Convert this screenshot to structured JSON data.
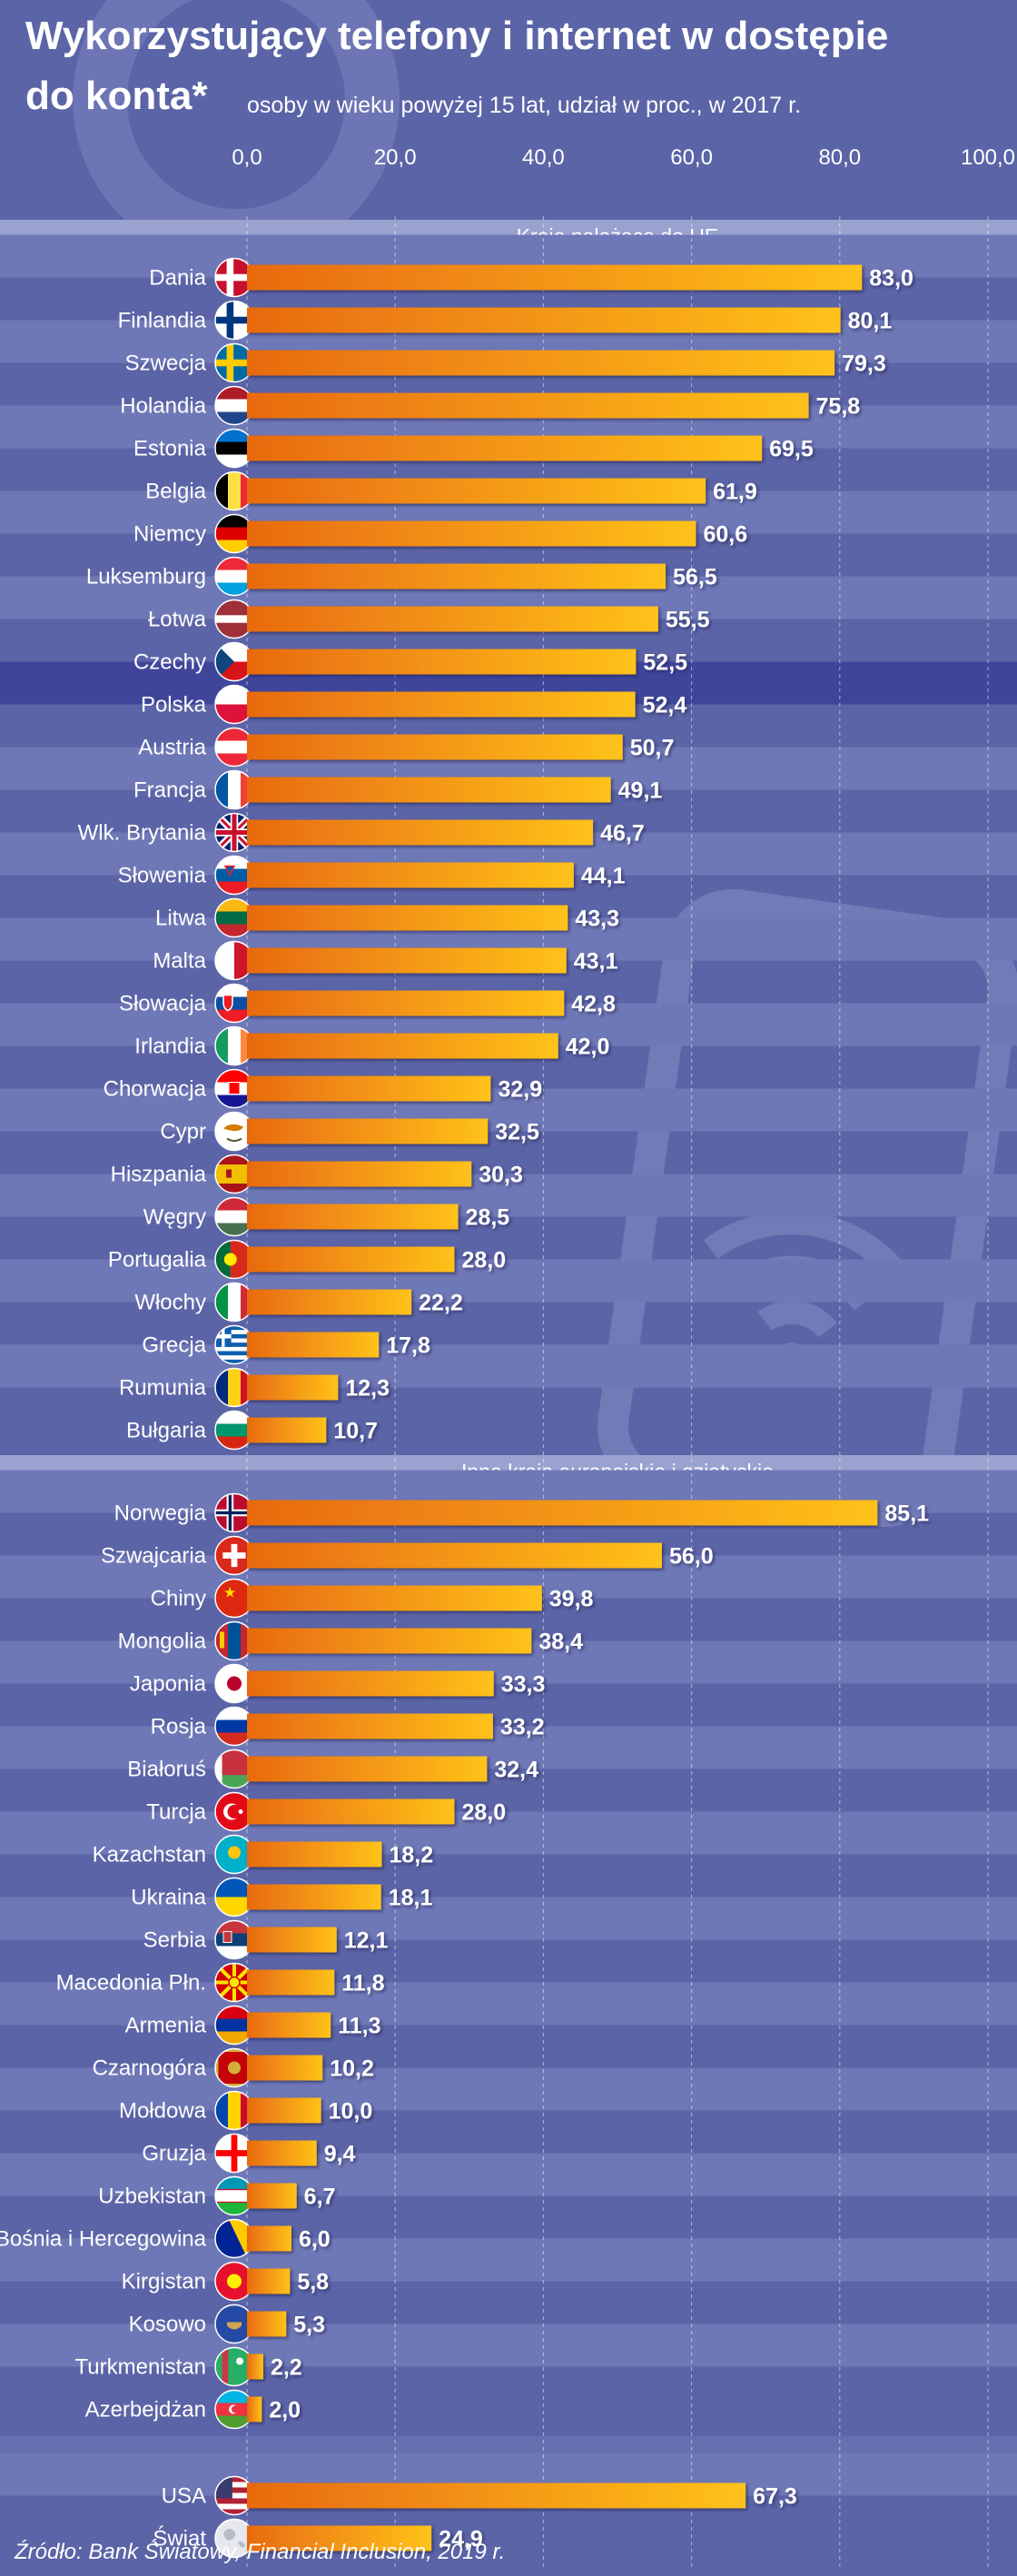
{
  "title": {
    "line1": "Wykorzystujący telefony i internet w dostępie",
    "line2": "do konta*",
    "subtitle": "osoby w wieku powyżej 15 lat, udział w proc., w 2017 r."
  },
  "source": "Źródło: Bank Światowy, Financial Inclusion, 2019 r.",
  "colors": {
    "background": "#5b64a6",
    "row_stripe": "#6f78b6",
    "row_highlight": "#3f469a",
    "section_band": "#9aa2d0",
    "bar_start": "#e86a10",
    "bar_end": "#ffc21a"
  },
  "chart_data": {
    "type": "bar",
    "orientation": "horizontal",
    "xlim": [
      0,
      100
    ],
    "ticks": [
      "0,0",
      "20,0",
      "40,0",
      "60,0",
      "80,0",
      "100,0"
    ],
    "tick_values": [
      0,
      20,
      40,
      60,
      80,
      100
    ],
    "highlight": "Polska",
    "groups": [
      {
        "title": "Kraje należące do UE",
        "flag_icons": [
          "denmark-flag",
          "finland-flag",
          "sweden-flag",
          "netherlands-flag",
          "estonia-flag",
          "belgium-flag",
          "germany-flag",
          "luxembourg-flag",
          "latvia-flag",
          "czechia-flag",
          "poland-flag",
          "austria-flag",
          "france-flag",
          "uk-flag",
          "slovenia-flag",
          "lithuania-flag",
          "malta-flag",
          "slovakia-flag",
          "ireland-flag",
          "croatia-flag",
          "cyprus-flag",
          "spain-flag",
          "hungary-flag",
          "portugal-flag",
          "italy-flag",
          "greece-flag",
          "romania-flag",
          "bulgaria-flag"
        ],
        "categories": [
          "Dania",
          "Finlandia",
          "Szwecja",
          "Holandia",
          "Estonia",
          "Belgia",
          "Niemcy",
          "Luksemburg",
          "Łotwa",
          "Czechy",
          "Polska",
          "Austria",
          "Francja",
          "Wlk. Brytania",
          "Słowenia",
          "Litwa",
          "Malta",
          "Słowacja",
          "Irlandia",
          "Chorwacja",
          "Cypr",
          "Hiszpania",
          "Węgry",
          "Portugalia",
          "Włochy",
          "Grecja",
          "Rumunia",
          "Bułgaria"
        ],
        "values": [
          83.0,
          80.1,
          79.3,
          75.8,
          69.5,
          61.9,
          60.6,
          56.5,
          55.5,
          52.5,
          52.4,
          50.7,
          49.1,
          46.7,
          44.1,
          43.3,
          43.1,
          42.8,
          42.0,
          32.9,
          32.5,
          30.3,
          28.5,
          28.0,
          22.2,
          17.8,
          12.3,
          10.7
        ],
        "labels": [
          "83,0",
          "80,1",
          "79,3",
          "75,8",
          "69,5",
          "61,9",
          "60,6",
          "56,5",
          "55,5",
          "52,5",
          "52,4",
          "50,7",
          "49,1",
          "46,7",
          "44,1",
          "43,3",
          "43,1",
          "42,8",
          "42,0",
          "32,9",
          "32,5",
          "30,3",
          "28,5",
          "28,0",
          "22,2",
          "17,8",
          "12,3",
          "10,7"
        ]
      },
      {
        "title": "Inne kraje europejskie i azjatyckie",
        "flag_icons": [
          "norway-flag",
          "switzerland-flag",
          "china-flag",
          "mongolia-flag",
          "japan-flag",
          "russia-flag",
          "belarus-flag",
          "turkey-flag",
          "kazakhstan-flag",
          "ukraine-flag",
          "serbia-flag",
          "north-macedonia-flag",
          "armenia-flag",
          "montenegro-flag",
          "moldova-flag",
          "georgia-flag",
          "uzbekistan-flag",
          "bosnia-flag",
          "kyrgyzstan-flag",
          "kosovo-flag",
          "turkmenistan-flag",
          "azerbaijan-flag"
        ],
        "categories": [
          "Norwegia",
          "Szwajcaria",
          "Chiny",
          "Mongolia",
          "Japonia",
          "Rosja",
          "Białoruś",
          "Turcja",
          "Kazachstan",
          "Ukraina",
          "Serbia",
          "Macedonia Płn.",
          "Armenia",
          "Czarnogóra",
          "Mołdowa",
          "Gruzja",
          "Uzbekistan",
          "Bośnia i Hercegowina",
          "Kirgistan",
          "Kosowo",
          "Turkmenistan",
          "Azerbejdżan"
        ],
        "values": [
          85.1,
          56.0,
          39.8,
          38.4,
          33.3,
          33.2,
          32.4,
          28.0,
          18.2,
          18.1,
          12.1,
          11.8,
          11.3,
          10.2,
          10.0,
          9.4,
          6.7,
          6.0,
          5.8,
          5.3,
          2.2,
          2.0
        ],
        "labels": [
          "85,1",
          "56,0",
          "39,8",
          "38,4",
          "33,3",
          "33,2",
          "32,4",
          "28,0",
          "18,2",
          "18,1",
          "12,1",
          "11,8",
          "11,3",
          "10,2",
          "10,0",
          "9,4",
          "6,7",
          "6,0",
          "5,8",
          "5,3",
          "2,2",
          "2,0"
        ]
      },
      {
        "title": "",
        "flag_icons": [
          "usa-flag",
          "world-globe-icon"
        ],
        "categories": [
          "USA",
          "Świat"
        ],
        "values": [
          67.3,
          24.9
        ],
        "labels": [
          "67,3",
          "24,9"
        ]
      }
    ]
  }
}
